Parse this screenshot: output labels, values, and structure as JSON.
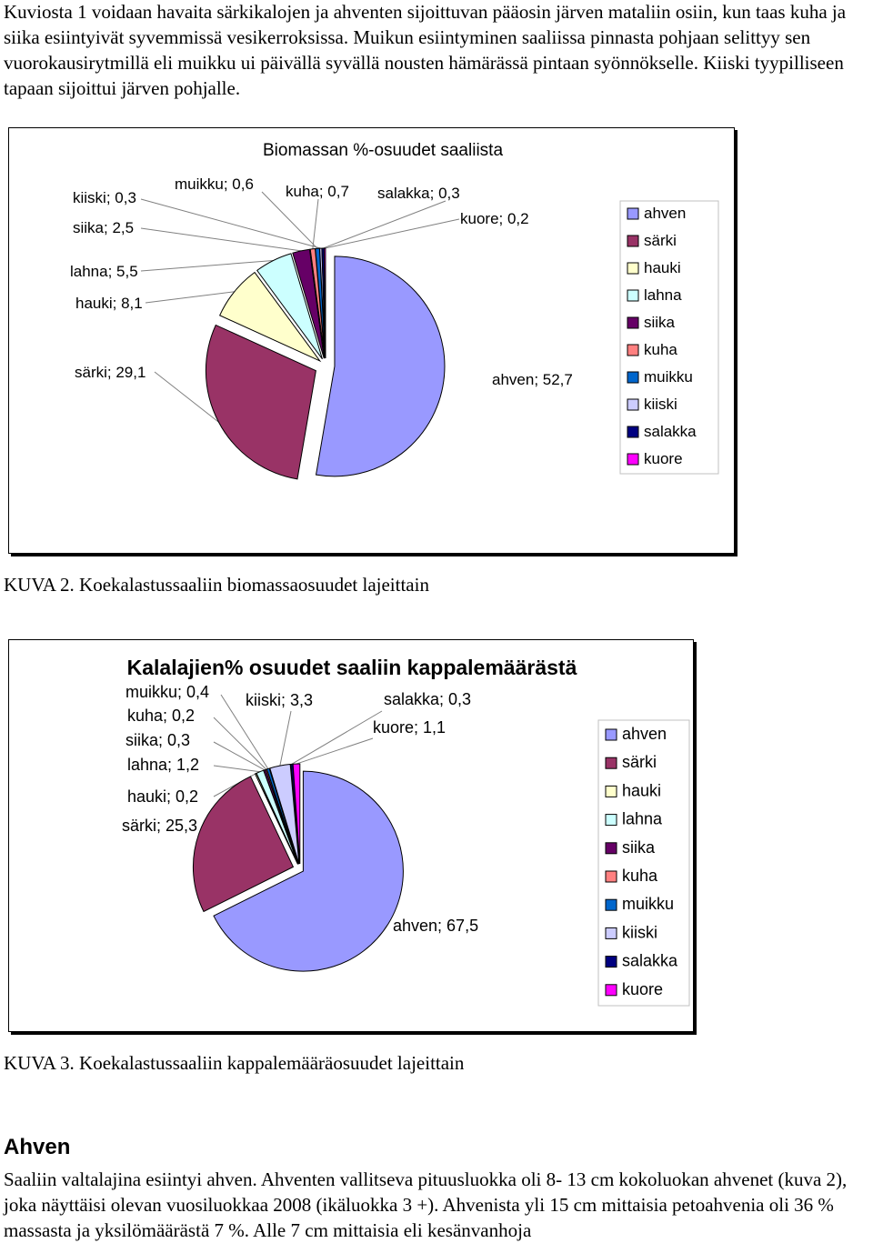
{
  "intro": "Kuviosta 1 voidaan havaita särkikalojen ja ahventen sijoittuvan pääosin järven mataliin osiin, kun taas kuha ja siika esiintyivät syvemmissä vesikerroksissa. Muikun esiintyminen saaliissa pinnasta pohjaan selittyy sen vuorokausirytmillä eli muikku ui päivällä syvällä nousten hämärässä pintaan syönnökselle. Kiiski tyypilliseen tapaan sijoittui järven pohjalle.",
  "colors": {
    "ahven": "#9999ff",
    "särki": "#993366",
    "hauki": "#ffffcc",
    "lahna": "#ccffff",
    "siika": "#660066",
    "kuha": "#ff8080",
    "muikku": "#0066cc",
    "kiiski": "#ccccff",
    "salakka": "#000080",
    "kuore": "#ff00ff"
  },
  "chart_data": [
    {
      "type": "pie",
      "title": "Biomassan %-osuudet saaliista",
      "categories": [
        "ahven",
        "särki",
        "hauki",
        "lahna",
        "siika",
        "kuha",
        "muikku",
        "kiiski",
        "salakka",
        "kuore"
      ],
      "values": [
        52.7,
        29.1,
        8.1,
        5.5,
        2.5,
        0.7,
        0.6,
        0.3,
        0.3,
        0.2
      ],
      "labels": [
        "ahven; 52,7",
        "särki; 29,1",
        "hauki; 8,1",
        "lahna; 5,5",
        "siika; 2,5",
        "kuha; 0,7",
        "muikku; 0,6",
        "kiiski; 0,3",
        "salakka; 0,3",
        "kuore; 0,2"
      ],
      "legend": "right"
    },
    {
      "type": "pie",
      "title": "Kalalajien% osuudet saaliin kappalemäärästä",
      "categories": [
        "ahven",
        "särki",
        "hauki",
        "lahna",
        "siika",
        "kuha",
        "muikku",
        "kiiski",
        "salakka",
        "kuore"
      ],
      "values": [
        67.5,
        25.3,
        0.2,
        1.2,
        0.3,
        0.2,
        0.4,
        3.3,
        0.3,
        1.1
      ],
      "labels": [
        "ahven; 67,5",
        "särki; 25,3",
        "hauki; 0,2",
        "lahna; 1,2",
        "siika; 0,3",
        "kuha; 0,2",
        "muikku; 0,4",
        "kiiski; 3,3",
        "salakka; 0,3",
        "kuore; 1,1"
      ],
      "legend": "right"
    }
  ],
  "caption1": "KUVA 2. Koekalastussaaliin biomassaosuudet lajeittain",
  "caption2": "KUVA 3. Koekalastussaaliin kappalemääräosuudet lajeittain",
  "section_heading": "Ahven",
  "body_text": "Saaliin valtalajina esiintyi ahven. Ahventen vallitseva pituusluokka oli 8- 13 cm kokoluokan ahvenet (kuva 2), joka näyttäisi olevan vuosiluokkaa 2008 (ikäluokka 3 +). Ahvenista yli 15 cm mittaisia petoahvenia oli 36 % massasta ja yksilömäärästä 7 %. Alle 7 cm mittaisia eli kesänvanhoja"
}
